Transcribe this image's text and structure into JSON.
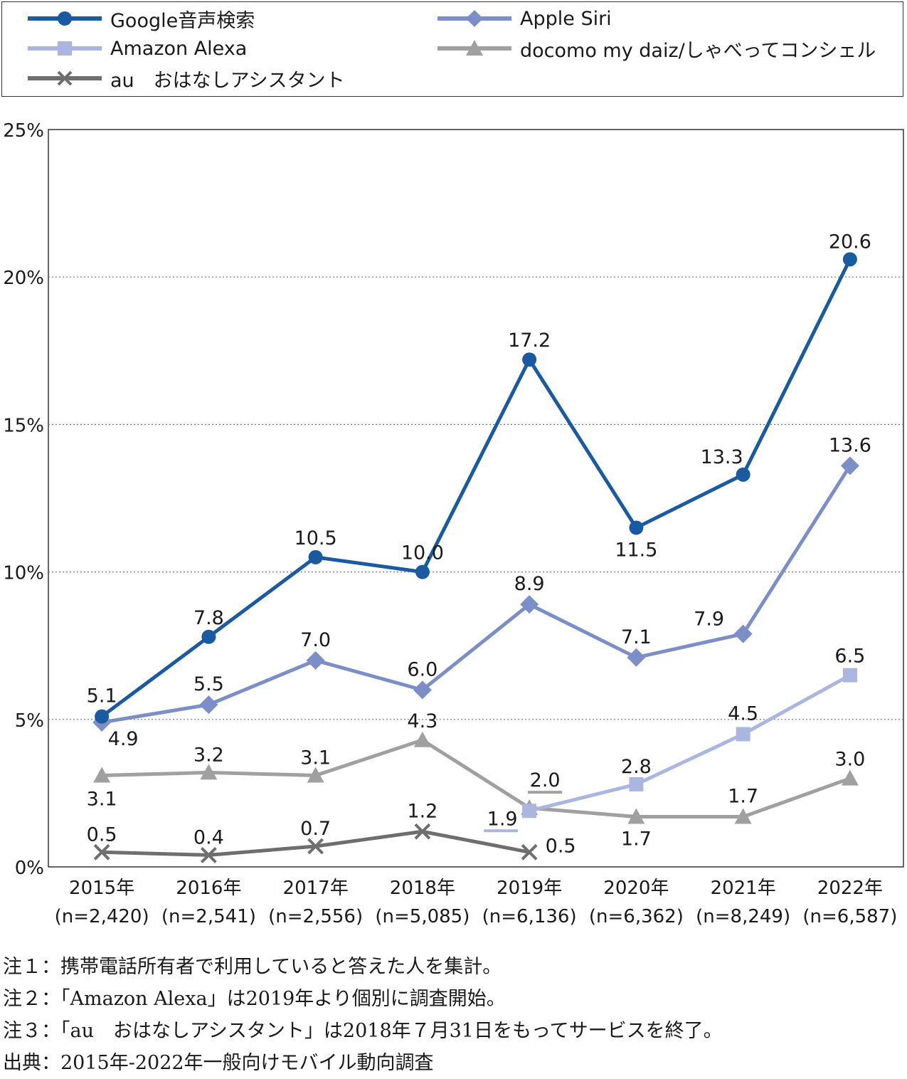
{
  "chart_data": {
    "type": "line",
    "ylabel": "",
    "xlabel": "",
    "ylim": [
      0,
      25
    ],
    "yticks": [
      "0%",
      "5%",
      "10%",
      "15%",
      "20%",
      "25%"
    ],
    "grid": "horizontal dotted",
    "legend_position": "top",
    "categories": [
      "2015年",
      "2016年",
      "2017年",
      "2018年",
      "2019年",
      "2020年",
      "2021年",
      "2022年"
    ],
    "category_n": [
      "(n=2,420)",
      "(n=2,541)",
      "(n=2,556)",
      "(n=5,085)",
      "(n=6,136)",
      "(n=6,362)",
      "(n=8,249)",
      "(n=6,587)"
    ],
    "series": [
      {
        "name": "Google音声検索",
        "color": "#1a5aa0",
        "marker": "circle",
        "values": [
          5.1,
          7.8,
          10.5,
          10.0,
          17.2,
          11.5,
          13.3,
          20.6
        ],
        "labels": [
          "5.1",
          "7.8",
          "10.5",
          "10.0",
          "17.2",
          "11.5",
          "13.3",
          "20.6"
        ]
      },
      {
        "name": "Apple Siri",
        "color": "#7b8ec8",
        "marker": "diamond",
        "values": [
          4.9,
          5.5,
          7.0,
          6.0,
          8.9,
          7.1,
          7.9,
          13.6
        ],
        "labels": [
          "4.9",
          "5.5",
          "7.0",
          "6.0",
          "8.9",
          "7.1",
          "7.9",
          "13.6"
        ]
      },
      {
        "name": "Amazon Alexa",
        "color": "#aab6e0",
        "marker": "square",
        "values": [
          null,
          null,
          null,
          null,
          1.9,
          2.8,
          4.5,
          6.5
        ],
        "labels": [
          "",
          "",
          "",
          "",
          "1.9",
          "2.8",
          "4.5",
          "6.5"
        ]
      },
      {
        "name": "docomo my daiz/しゃべってコンシェル",
        "color": "#a0a0a0",
        "marker": "triangle",
        "values": [
          3.1,
          3.2,
          3.1,
          4.3,
          2.0,
          1.7,
          1.7,
          3.0
        ],
        "labels": [
          "3.1",
          "3.2",
          "3.1",
          "4.3",
          "2.0",
          "1.7",
          "1.7",
          "3.0"
        ]
      },
      {
        "name": "au　おはなしアシスタント",
        "color": "#6e6e6e",
        "marker": "x",
        "values": [
          0.5,
          0.4,
          0.7,
          1.2,
          0.5,
          null,
          null,
          null
        ],
        "labels": [
          "0.5",
          "0.4",
          "0.7",
          "1.2",
          "0.5",
          "",
          "",
          ""
        ]
      }
    ]
  },
  "notes": [
    "注１：携帯電話所有者で利用していると答えた人を集計。",
    "注２：「Amazon Alexa」は2019年より個別に調査開始。",
    "注３：「au　おはなしアシスタント」は2018年７月31日をもってサービスを終了。",
    "出典：2015年-2022年一般向けモバイル動向調査"
  ]
}
